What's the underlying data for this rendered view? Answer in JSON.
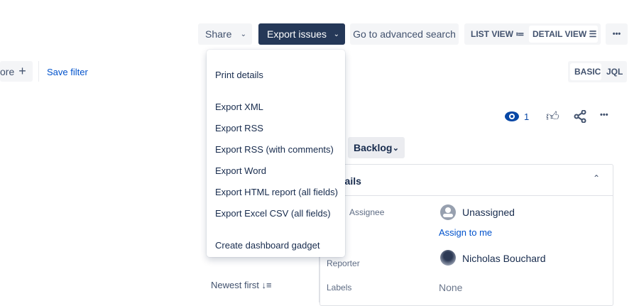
{
  "toolbar": {
    "share": "Share",
    "export": "Export issues",
    "advanced": "Go to advanced search",
    "list_view": "LIST VIEW",
    "detail_view": "DETAIL VIEW",
    "more": "•••"
  },
  "filter": {
    "more": "ore",
    "save": "Save filter",
    "basic": "BASIC",
    "jql": "JQL"
  },
  "export_menu": [
    "Print details",
    "Export XML",
    "Export RSS",
    "Export RSS (with comments)",
    "Export Word",
    "Export HTML report (all fields)",
    "Export Excel CSV (all fields)",
    "Create dashboard gadget"
  ],
  "issue": {
    "watchers": "1",
    "status": "Backlog",
    "details_title": "Details",
    "fields": {
      "assignee_label": "Assignee",
      "assignee": "Unassigned",
      "assign_me": "Assign to me",
      "reporter_label": "Reporter",
      "reporter": "Nicholas Bouchard",
      "labels_label": "Labels",
      "labels": "None"
    }
  },
  "sort": {
    "label": "Newest first"
  },
  "colors": {
    "primary": "#253858",
    "link": "#0052cc",
    "bg_button": "#f4f5f7"
  }
}
